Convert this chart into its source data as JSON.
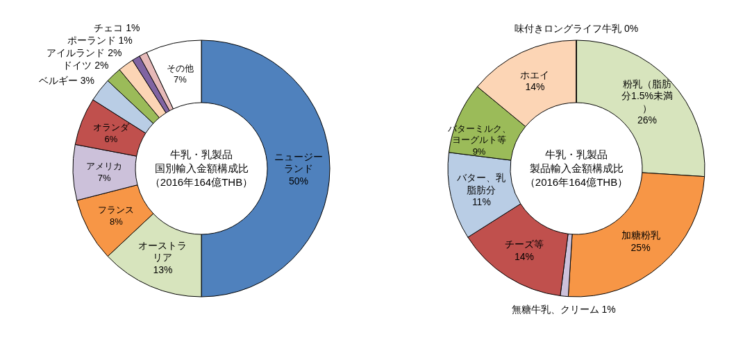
{
  "chart_data": [
    {
      "type": "donut",
      "title": "牛乳・乳製品",
      "subtitle": "国別輸入金額構成比",
      "annotations": [
        "（2016年164億THB）"
      ],
      "legend": false,
      "categories": [
        "ニュージーランド",
        "オーストラリア",
        "フランス",
        "アメリカ",
        "オランダ",
        "ベルギー",
        "ドイツ",
        "アイルランド",
        "ポーランド",
        "チェコ",
        "その他"
      ],
      "values": [
        50,
        13,
        8,
        7,
        6,
        3,
        2,
        2,
        1,
        1,
        7
      ],
      "value_labels": [
        "50%",
        "13%",
        "8%",
        "7%",
        "6%",
        "3%",
        "2%",
        "2%",
        "1%",
        "1%",
        "7%"
      ],
      "colors": [
        "#4f81bd",
        "#d7e4bd",
        "#f79646",
        "#ccc1da",
        "#c0504d",
        "#b9cde5",
        "#9bbb59",
        "#fcd5b5",
        "#8064a2",
        "#e6b9b8",
        "#ffffff"
      ]
    },
    {
      "type": "donut",
      "title": "牛乳・乳製品",
      "subtitle": "製品輸入金額構成比",
      "annotations": [
        "（2016年164億THB）"
      ],
      "legend": false,
      "categories": [
        "粉乳（脂肪分1.5%未満）",
        "加糖粉乳",
        "無糖牛乳、クリーム",
        "チーズ等",
        "バター、乳脂肪分",
        "バターミルク、ヨーグルト等",
        "ホエイ",
        "味付きロングライフ牛乳"
      ],
      "values": [
        26,
        25,
        1,
        14,
        11,
        9,
        14,
        0
      ],
      "value_labels": [
        "26%",
        "25%",
        "1%",
        "14%",
        "11%",
        "9%",
        "14%",
        "0%"
      ],
      "colors": [
        "#d7e4bd",
        "#f79646",
        "#ccc1da",
        "#c0504d",
        "#b9cde5",
        "#9bbb59",
        "#fcd5b5",
        "#ffffff"
      ]
    }
  ]
}
